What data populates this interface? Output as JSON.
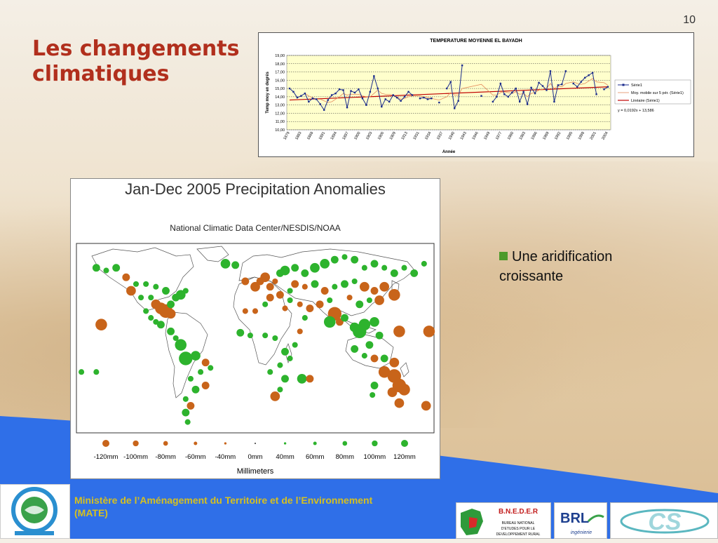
{
  "slide_number": "10",
  "title_lines": [
    "Les changements",
    "climatiques"
  ],
  "bullet": {
    "lines": [
      "Une aridification",
      "croissante"
    ]
  },
  "footer": {
    "text_line1": "Ministère de l’Aménagement du Territoire et de l’Environnement",
    "text_line2": "(MATE)"
  },
  "logos": {
    "bneder": "B.N.E.D.E.R",
    "bneder_sub": [
      "BUREAU NATIONAL",
      "D'ETUDES POUR LE",
      "DEVELOPPEMENT RURAL"
    ],
    "brl": "BRL",
    "brl_sub": "ingénierie",
    "cs": "CS"
  },
  "chart_data": [
    {
      "type": "line",
      "title": "TEMPERATURE MOYENNE EL BAYADH",
      "xlabel": "Année",
      "ylabel": "Temp moy en degrés",
      "ylim": [
        10,
        19
      ],
      "y_ticks": [
        "10,00",
        "11,00",
        "12,00",
        "13,00",
        "14,00",
        "15,00",
        "16,00",
        "17,00",
        "18,00",
        "19,00"
      ],
      "x_tick_labels": [
        "1879",
        "1883",
        "1888",
        "1891",
        "1894",
        "1897",
        "1900",
        "1903",
        "1906",
        "1909",
        "1913",
        "1931",
        "1934",
        "1937",
        "1940",
        "1943",
        "1946",
        "1949",
        "1977",
        "1980",
        "1983",
        "1986",
        "1989",
        "1992",
        "1995",
        "1998",
        "2001",
        "2004"
      ],
      "legend": [
        "Série1",
        "Moy. mobile sur 5 pér. (Série1)",
        "Linéaire (Série1)"
      ],
      "legend_position": "right",
      "equation": "y = 0,0192x + 13,586",
      "trend": {
        "slope": 0.0192,
        "intercept": 13.586
      },
      "series": [
        {
          "name": "Série1",
          "color": "#1a2b8c",
          "values": [
            15.0,
            14.6,
            13.9,
            14.1,
            14.4,
            13.4,
            13.8,
            13.7,
            13.1,
            12.4,
            13.6,
            14.2,
            14.4,
            14.9,
            14.8,
            12.7,
            14.7,
            14.5,
            14.9,
            13.8,
            13.0,
            14.6,
            16.5,
            15.0,
            12.8,
            13.7,
            13.4,
            14.2,
            13.9,
            13.5,
            14.0,
            14.6,
            14.2,
            null,
            13.8,
            13.9,
            13.7,
            13.8,
            null,
            13.3,
            null,
            15.0,
            15.8,
            12.6,
            13.5,
            17.8,
            null,
            null,
            null,
            null,
            14.1,
            null,
            null,
            13.4,
            14.0,
            15.6,
            14.3,
            14.0,
            14.5,
            15.0,
            13.4,
            14.6,
            13.1,
            15.1,
            14.4,
            15.7,
            15.3,
            14.8,
            17.1,
            13.4,
            15.4,
            15.5,
            17.1,
            null,
            15.6,
            15.2,
            15.8,
            16.3,
            16.6,
            16.9,
            14.3,
            null,
            14.9,
            15.2
          ]
        },
        {
          "name": "Moy. mobile sur 5 pér. (Série1)",
          "color": "#e58a5c",
          "values": [
            null,
            null,
            null,
            null,
            14.4,
            14.1,
            13.9,
            13.7,
            13.7,
            13.5,
            13.3,
            13.4,
            13.7,
            14.0,
            14.4,
            14.2,
            14.3,
            14.3,
            14.3,
            14.1,
            14.0,
            14.0,
            14.4,
            14.8,
            14.4,
            14.3,
            14.3,
            14.2,
            14.0,
            13.7,
            13.8,
            14.0,
            14.1,
            null,
            14.1,
            14.0,
            13.9,
            13.8,
            null,
            13.6,
            null,
            14.0,
            14.5,
            14.2,
            14.2,
            15.0,
            null,
            null,
            null,
            null,
            15.5,
            null,
            null,
            14.2,
            14.2,
            14.5,
            14.6,
            14.5,
            14.4,
            14.6,
            14.3,
            14.4,
            14.0,
            14.4,
            14.5,
            14.8,
            14.9,
            15.0,
            15.6,
            15.0,
            15.3,
            15.2,
            15.6,
            null,
            15.8,
            15.6,
            15.5,
            15.6,
            15.9,
            16.2,
            15.8,
            null,
            15.7,
            15.4
          ]
        }
      ]
    },
    {
      "type": "map",
      "title": "Jan-Dec 2005 Precipitation Anomalies",
      "subtitle": "National Climatic Data Center/NESDIS/NOAA",
      "legend_labels": [
        "-120mm",
        "-100mm",
        "-80mm",
        "-60mm",
        "-40mm",
        "0mm",
        "40mm",
        "60mm",
        "80mm",
        "100mm",
        "120mm"
      ],
      "legend_values": [
        -120,
        -100,
        -80,
        -60,
        -40,
        0,
        40,
        60,
        80,
        100,
        120
      ],
      "xlabel": "Millimeters",
      "colors": {
        "dry": "#c8641a",
        "wet": "#2db32d",
        "neutral": "#333333"
      },
      "anomalies": [
        {
          "lon": -160,
          "lat": 62,
          "v": 60
        },
        {
          "lon": -150,
          "lat": 60,
          "v": 40
        },
        {
          "lon": -140,
          "lat": 62,
          "v": 60
        },
        {
          "lon": -130,
          "lat": 55,
          "v": -60
        },
        {
          "lon": -120,
          "lat": 50,
          "v": 40
        },
        {
          "lon": -125,
          "lat": 45,
          "v": -80
        },
        {
          "lon": -115,
          "lat": 40,
          "v": 40
        },
        {
          "lon": -105,
          "lat": 40,
          "v": 40
        },
        {
          "lon": -100,
          "lat": 35,
          "v": -80
        },
        {
          "lon": -95,
          "lat": 32,
          "v": -100
        },
        {
          "lon": -90,
          "lat": 30,
          "v": -120
        },
        {
          "lon": -85,
          "lat": 35,
          "v": 60
        },
        {
          "lon": -80,
          "lat": 40,
          "v": 60
        },
        {
          "lon": -75,
          "lat": 42,
          "v": 80
        },
        {
          "lon": -70,
          "lat": 45,
          "v": 40
        },
        {
          "lon": -110,
          "lat": 50,
          "v": 40
        },
        {
          "lon": -100,
          "lat": 48,
          "v": 40
        },
        {
          "lon": -90,
          "lat": 45,
          "v": 60
        },
        {
          "lon": -85,
          "lat": 28,
          "v": -80
        },
        {
          "lon": -95,
          "lat": 20,
          "v": 60
        },
        {
          "lon": -100,
          "lat": 22,
          "v": 40
        },
        {
          "lon": -155,
          "lat": 20,
          "v": -100
        },
        {
          "lon": -110,
          "lat": 30,
          "v": 40
        },
        {
          "lon": -105,
          "lat": 25,
          "v": 40
        },
        {
          "lon": -85,
          "lat": 15,
          "v": 60
        },
        {
          "lon": -80,
          "lat": 10,
          "v": 40
        },
        {
          "lon": -75,
          "lat": 5,
          "v": 100
        },
        {
          "lon": -70,
          "lat": -5,
          "v": 120
        },
        {
          "lon": -60,
          "lat": -3,
          "v": 80
        },
        {
          "lon": -50,
          "lat": -8,
          "v": -60
        },
        {
          "lon": -45,
          "lat": -12,
          "v": 40
        },
        {
          "lon": -55,
          "lat": -15,
          "v": 40
        },
        {
          "lon": -65,
          "lat": -20,
          "v": 40
        },
        {
          "lon": -60,
          "lat": -28,
          "v": 60
        },
        {
          "lon": -50,
          "lat": -25,
          "v": -60
        },
        {
          "lon": -70,
          "lat": -35,
          "v": 40
        },
        {
          "lon": -65,
          "lat": -40,
          "v": -60
        },
        {
          "lon": -70,
          "lat": -45,
          "v": 60
        },
        {
          "lon": -68,
          "lat": -52,
          "v": 40
        },
        {
          "lon": -160,
          "lat": -15,
          "v": 40
        },
        {
          "lon": -30,
          "lat": 65,
          "v": 80
        },
        {
          "lon": -20,
          "lat": 64,
          "v": 60
        },
        {
          "lon": -10,
          "lat": 52,
          "v": -60
        },
        {
          "lon": 0,
          "lat": 48,
          "v": -80
        },
        {
          "lon": 5,
          "lat": 52,
          "v": -60
        },
        {
          "lon": 10,
          "lat": 55,
          "v": -80
        },
        {
          "lon": 15,
          "lat": 48,
          "v": -60
        },
        {
          "lon": 20,
          "lat": 52,
          "v": -40
        },
        {
          "lon": 25,
          "lat": 58,
          "v": 60
        },
        {
          "lon": 30,
          "lat": 60,
          "v": 80
        },
        {
          "lon": 40,
          "lat": 62,
          "v": 60
        },
        {
          "lon": 50,
          "lat": 58,
          "v": 60
        },
        {
          "lon": 60,
          "lat": 62,
          "v": 80
        },
        {
          "lon": 70,
          "lat": 65,
          "v": 80
        },
        {
          "lon": 80,
          "lat": 68,
          "v": 60
        },
        {
          "lon": 90,
          "lat": 70,
          "v": 40
        },
        {
          "lon": 100,
          "lat": 68,
          "v": 60
        },
        {
          "lon": 110,
          "lat": 62,
          "v": 40
        },
        {
          "lon": 120,
          "lat": 65,
          "v": 60
        },
        {
          "lon": 130,
          "lat": 62,
          "v": 40
        },
        {
          "lon": 140,
          "lat": 58,
          "v": 60
        },
        {
          "lon": 150,
          "lat": 62,
          "v": 40
        },
        {
          "lon": 160,
          "lat": 58,
          "v": 60
        },
        {
          "lon": 170,
          "lat": 65,
          "v": 40
        },
        {
          "lon": 40,
          "lat": 50,
          "v": -60
        },
        {
          "lon": 50,
          "lat": 48,
          "v": -40
        },
        {
          "lon": 60,
          "lat": 50,
          "v": 60
        },
        {
          "lon": 70,
          "lat": 45,
          "v": -60
        },
        {
          "lon": 80,
          "lat": 48,
          "v": 40
        },
        {
          "lon": 90,
          "lat": 50,
          "v": 60
        },
        {
          "lon": 100,
          "lat": 52,
          "v": 40
        },
        {
          "lon": 110,
          "lat": 48,
          "v": -80
        },
        {
          "lon": 120,
          "lat": 45,
          "v": -60
        },
        {
          "lon": 130,
          "lat": 48,
          "v": -80
        },
        {
          "lon": 140,
          "lat": 42,
          "v": -100
        },
        {
          "lon": 125,
          "lat": 38,
          "v": -80
        },
        {
          "lon": 115,
          "lat": 38,
          "v": 40
        },
        {
          "lon": 105,
          "lat": 35,
          "v": 60
        },
        {
          "lon": 95,
          "lat": 40,
          "v": -40
        },
        {
          "lon": 75,
          "lat": 38,
          "v": 40
        },
        {
          "lon": 65,
          "lat": 35,
          "v": -60
        },
        {
          "lon": 55,
          "lat": 32,
          "v": -60
        },
        {
          "lon": 45,
          "lat": 35,
          "v": -40
        },
        {
          "lon": 35,
          "lat": 38,
          "v": 40
        },
        {
          "lon": 30,
          "lat": 32,
          "v": -40
        },
        {
          "lon": 10,
          "lat": 35,
          "v": 40
        },
        {
          "lon": 0,
          "lat": 30,
          "v": -40
        },
        {
          "lon": -10,
          "lat": 30,
          "v": -40
        },
        {
          "lon": 15,
          "lat": 40,
          "v": -60
        },
        {
          "lon": 25,
          "lat": 42,
          "v": -60
        },
        {
          "lon": 35,
          "lat": 45,
          "v": 40
        },
        {
          "lon": 80,
          "lat": 28,
          "v": -120
        },
        {
          "lon": 75,
          "lat": 22,
          "v": 100
        },
        {
          "lon": 85,
          "lat": 22,
          "v": -60
        },
        {
          "lon": 90,
          "lat": 25,
          "v": 60
        },
        {
          "lon": 100,
          "lat": 18,
          "v": 80
        },
        {
          "lon": 105,
          "lat": 15,
          "v": 120
        },
        {
          "lon": 110,
          "lat": 20,
          "v": 100
        },
        {
          "lon": 120,
          "lat": 22,
          "v": 80
        },
        {
          "lon": 125,
          "lat": 12,
          "v": 60
        },
        {
          "lon": 145,
          "lat": 15,
          "v": -100
        },
        {
          "lon": 115,
          "lat": 5,
          "v": 60
        },
        {
          "lon": 100,
          "lat": 2,
          "v": 60
        },
        {
          "lon": 110,
          "lat": -3,
          "v": 40
        },
        {
          "lon": 120,
          "lat": -5,
          "v": -60
        },
        {
          "lon": 130,
          "lat": -5,
          "v": 60
        },
        {
          "lon": 140,
          "lat": -8,
          "v": -80
        },
        {
          "lon": 130,
          "lat": -15,
          "v": -100
        },
        {
          "lon": 140,
          "lat": -18,
          "v": -120
        },
        {
          "lon": 145,
          "lat": -25,
          "v": -120
        },
        {
          "lon": 150,
          "lat": -28,
          "v": -100
        },
        {
          "lon": 138,
          "lat": -30,
          "v": -80
        },
        {
          "lon": 120,
          "lat": -25,
          "v": 60
        },
        {
          "lon": 118,
          "lat": -32,
          "v": 40
        },
        {
          "lon": 145,
          "lat": -38,
          "v": -80
        },
        {
          "lon": 172,
          "lat": -40,
          "v": -80
        },
        {
          "lon": 50,
          "lat": 25,
          "v": 40
        },
        {
          "lon": 45,
          "lat": 15,
          "v": -40
        },
        {
          "lon": 40,
          "lat": 5,
          "v": 40
        },
        {
          "lon": 35,
          "lat": -5,
          "v": 40
        },
        {
          "lon": 20,
          "lat": 10,
          "v": 40
        },
        {
          "lon": 10,
          "lat": 12,
          "v": 40
        },
        {
          "lon": -5,
          "lat": 12,
          "v": 40
        },
        {
          "lon": -15,
          "lat": 14,
          "v": 60
        },
        {
          "lon": 30,
          "lat": 0,
          "v": 60
        },
        {
          "lon": 25,
          "lat": -10,
          "v": 40
        },
        {
          "lon": 30,
          "lat": -20,
          "v": 60
        },
        {
          "lon": 25,
          "lat": -28,
          "v": 40
        },
        {
          "lon": 20,
          "lat": -33,
          "v": -80
        },
        {
          "lon": 47,
          "lat": -20,
          "v": 80
        },
        {
          "lon": 55,
          "lat": -20,
          "v": -60
        },
        {
          "lon": 15,
          "lat": -15,
          "v": 40
        },
        {
          "lon": 175,
          "lat": 15,
          "v": -100
        },
        {
          "lon": -175,
          "lat": -15,
          "v": 40
        }
      ]
    }
  ]
}
